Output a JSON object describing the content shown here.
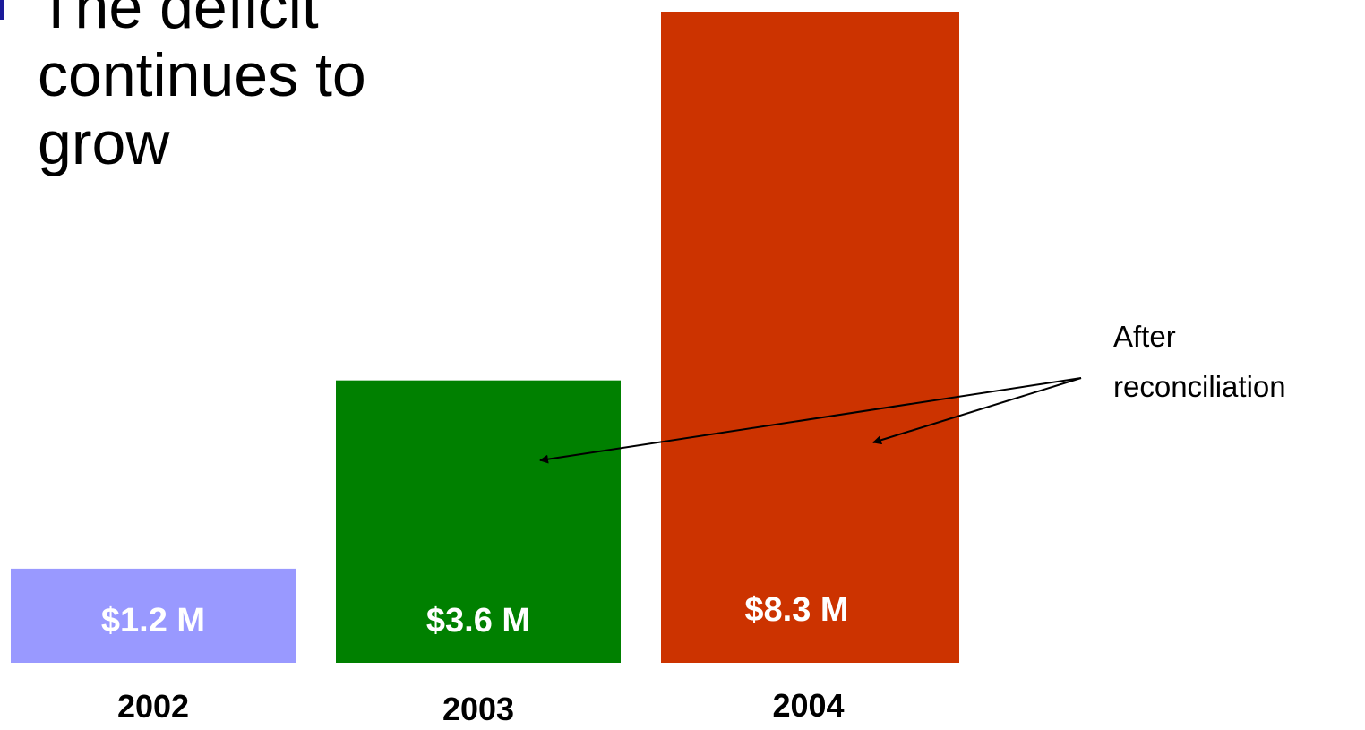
{
  "slide": {
    "title_lines": [
      "The deficit",
      "continues to",
      "grow"
    ]
  },
  "chart_data": {
    "type": "bar",
    "categories": [
      "2002",
      "2003",
      "2004"
    ],
    "values": [
      1.2,
      3.6,
      8.3
    ],
    "value_labels": [
      "$1.2 M",
      "$3.6 M",
      "$8.3 M"
    ],
    "colors": [
      "#9999ff",
      "#008000",
      "#cc3300"
    ],
    "title": "",
    "xlabel": "",
    "ylabel": "",
    "ylim": [
      0,
      8.3
    ],
    "grid": false,
    "annotations": [
      {
        "lines": [
          "After",
          "reconciliation"
        ],
        "points_to": [
          "2003",
          "2004"
        ]
      }
    ]
  }
}
